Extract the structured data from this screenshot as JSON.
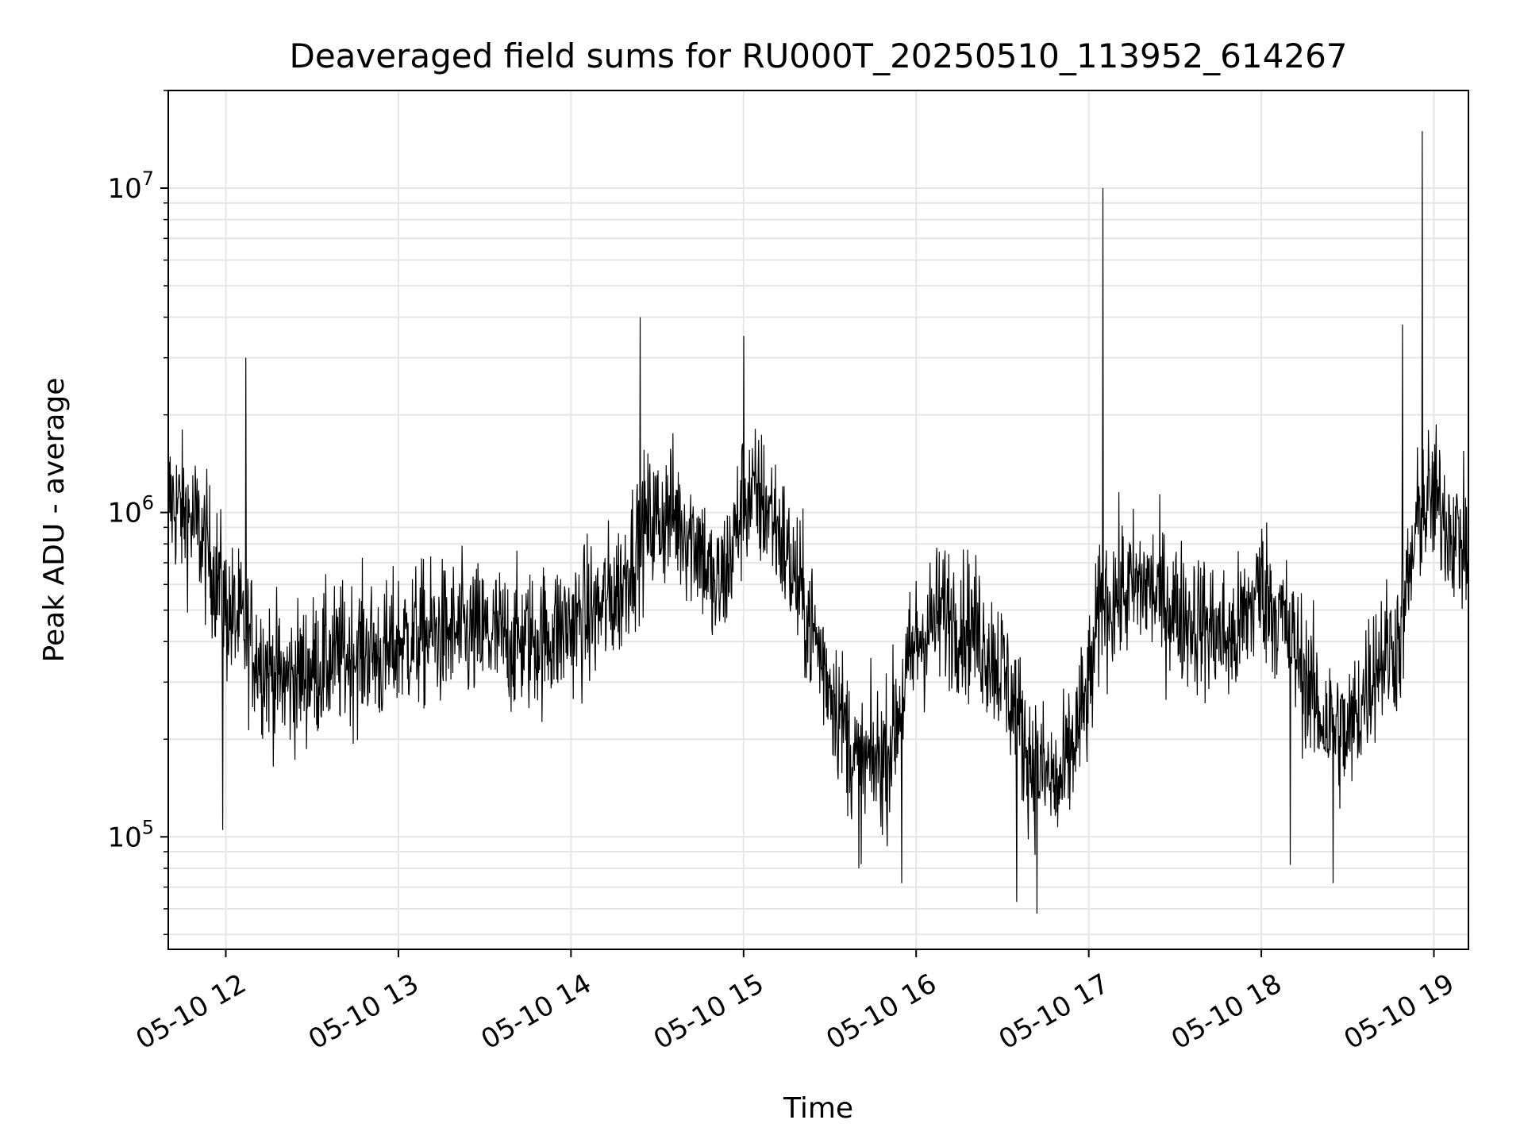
{
  "chart_data": {
    "type": "line",
    "title": "Deaveraged field sums for RU000T_20250510_113952_614267",
    "xlabel": "Time",
    "ylabel": "Peak ADU - average",
    "yscale": "log",
    "ylim": [
      45000,
      20000000
    ],
    "xlim": [
      "2025-05-10T11:40",
      "2025-05-10T19:12"
    ],
    "grid": true,
    "line_color": "#000000",
    "grid_color": "#e6e6e6",
    "x_ticks": [
      {
        "value": "2025-05-10T12:00",
        "label": "05-10 12"
      },
      {
        "value": "2025-05-10T13:00",
        "label": "05-10 13"
      },
      {
        "value": "2025-05-10T14:00",
        "label": "05-10 14"
      },
      {
        "value": "2025-05-10T15:00",
        "label": "05-10 15"
      },
      {
        "value": "2025-05-10T16:00",
        "label": "05-10 16"
      },
      {
        "value": "2025-05-10T17:00",
        "label": "05-10 17"
      },
      {
        "value": "2025-05-10T18:00",
        "label": "05-10 18"
      },
      {
        "value": "2025-05-10T19:00",
        "label": "05-10 19"
      }
    ],
    "y_ticks": [
      {
        "value": 100000,
        "base": "10",
        "exp": "5"
      },
      {
        "value": 1000000,
        "base": "10",
        "exp": "6"
      },
      {
        "value": 10000000,
        "base": "10",
        "exp": "7"
      }
    ],
    "series": [
      {
        "x": [
          "2025-05-10T11:40",
          "2025-05-10T11:45",
          "2025-05-10T11:50",
          "2025-05-10T11:55",
          "2025-05-10T11:58",
          "2025-05-10T12:00",
          "2025-05-10T12:05",
          "2025-05-10T12:10",
          "2025-05-10T12:15",
          "2025-05-10T12:20",
          "2025-05-10T12:30",
          "2025-05-10T12:40",
          "2025-05-10T12:50",
          "2025-05-10T12:55",
          "2025-05-10T13:00",
          "2025-05-10T13:10",
          "2025-05-10T13:20",
          "2025-05-10T13:30",
          "2025-05-10T13:40",
          "2025-05-10T13:50",
          "2025-05-10T14:00",
          "2025-05-10T14:10",
          "2025-05-10T14:18",
          "2025-05-10T14:20",
          "2025-05-10T14:25",
          "2025-05-10T14:35",
          "2025-05-10T14:45",
          "2025-05-10T14:50",
          "2025-05-10T14:55",
          "2025-05-10T15:00",
          "2025-05-10T15:05",
          "2025-05-10T15:10",
          "2025-05-10T15:20",
          "2025-05-10T15:30",
          "2025-05-10T15:40",
          "2025-05-10T15:50",
          "2025-05-10T16:00",
          "2025-05-10T16:10",
          "2025-05-10T16:20",
          "2025-05-10T16:30",
          "2025-05-10T16:40",
          "2025-05-10T16:50",
          "2025-05-10T17:00",
          "2025-05-10T17:04",
          "2025-05-10T17:10",
          "2025-05-10T17:20",
          "2025-05-10T17:30",
          "2025-05-10T17:40",
          "2025-05-10T17:50",
          "2025-05-10T18:00",
          "2025-05-10T18:10",
          "2025-05-10T18:20",
          "2025-05-10T18:30",
          "2025-05-10T18:40",
          "2025-05-10T18:48",
          "2025-05-10T18:55",
          "2025-05-10T19:00",
          "2025-05-10T19:06",
          "2025-05-10T19:12"
        ],
        "values": [
          1100000,
          1000000,
          900000,
          700000,
          600000,
          500000,
          450000,
          380000,
          330000,
          300000,
          330000,
          360000,
          380000,
          350000,
          400000,
          420000,
          420000,
          420000,
          400000,
          410000,
          450000,
          500000,
          600000,
          700000,
          900000,
          1000000,
          800000,
          550000,
          700000,
          1100000,
          1100000,
          1000000,
          550000,
          300000,
          160000,
          180000,
          400000,
          500000,
          440000,
          330000,
          170000,
          140000,
          280000,
          500000,
          560000,
          600000,
          500000,
          450000,
          400000,
          600000,
          420000,
          240000,
          200000,
          350000,
          400000,
          1000000,
          1100000,
          900000,
          750000
        ]
      }
    ],
    "peaks": [
      {
        "x": "2025-05-10T12:07",
        "y": 3000000
      },
      {
        "x": "2025-05-10T14:24",
        "y": 4000000
      },
      {
        "x": "2025-05-10T15:00",
        "y": 3500000
      },
      {
        "x": "2025-05-10T17:05",
        "y": 10000000
      },
      {
        "x": "2025-05-10T18:49",
        "y": 3800000
      },
      {
        "x": "2025-05-10T18:56",
        "y": 15000000
      }
    ],
    "troughs": [
      {
        "x": "2025-05-10T11:59",
        "y": 105000
      },
      {
        "x": "2025-05-10T15:40",
        "y": 80000
      },
      {
        "x": "2025-05-10T15:55",
        "y": 72000
      },
      {
        "x": "2025-05-10T16:35",
        "y": 63000
      },
      {
        "x": "2025-05-10T16:42",
        "y": 58000
      },
      {
        "x": "2025-05-10T18:10",
        "y": 82000
      },
      {
        "x": "2025-05-10T18:25",
        "y": 72000
      }
    ]
  }
}
